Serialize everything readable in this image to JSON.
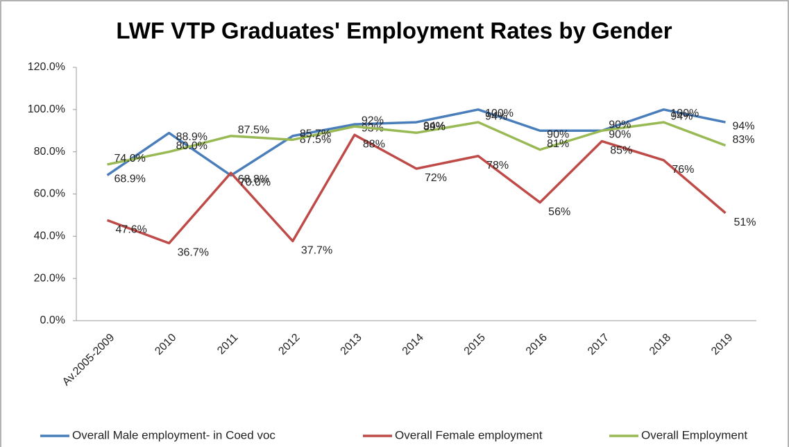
{
  "chart_data": {
    "type": "line",
    "title": "LWF VTP Graduates' Employment Rates by Gender",
    "categories": [
      "Av.2005-2009",
      "2010",
      "2011",
      "2012",
      "2013",
      "2014",
      "2015",
      "2016",
      "2017",
      "2018",
      "2019"
    ],
    "series": [
      {
        "name": "Overall Male employment- in Coed voc",
        "color": "#4a7ebb",
        "values": [
          68.9,
          88.9,
          68.8,
          87.5,
          93,
          94,
          100,
          90,
          90,
          100,
          94
        ],
        "value_labels": [
          "68.9%",
          "88.9%",
          "68.8%",
          "87.5%",
          "93%",
          "94%",
          "100%",
          "90%",
          "90%",
          "100%",
          "94%"
        ]
      },
      {
        "name": "Overall Female employment",
        "color": "#be4b48",
        "values": [
          47.6,
          36.7,
          70.0,
          37.7,
          88,
          72,
          78,
          56,
          85,
          76,
          51
        ],
        "value_labels": [
          "47.6%",
          "36.7%",
          "70.0%",
          "37.7%",
          "88%",
          "72%",
          "78%",
          "56%",
          "85%",
          "76%",
          "51%"
        ]
      },
      {
        "name": "Overall Employment",
        "color": "#98b954",
        "values": [
          74.0,
          80.0,
          87.5,
          85.7,
          92,
          89,
          94,
          81,
          90,
          94,
          83
        ],
        "value_labels": [
          "74.0%",
          "80.0%",
          "87.5%",
          "85.7%",
          "92%",
          "89%",
          "94%",
          "81%",
          "90%",
          "94%",
          "83%"
        ]
      }
    ],
    "ylim": [
      0,
      120
    ],
    "yticks": [
      {
        "value": 0,
        "label": "0.0%"
      },
      {
        "value": 20,
        "label": "20.0%"
      },
      {
        "value": 40,
        "label": "40.0%"
      },
      {
        "value": 60,
        "label": "60.0%"
      },
      {
        "value": 80,
        "label": "80.0%"
      },
      {
        "value": 100,
        "label": "100.0%"
      },
      {
        "value": 120,
        "label": "120.0%"
      }
    ],
    "grid": false,
    "legend": "bottom"
  }
}
